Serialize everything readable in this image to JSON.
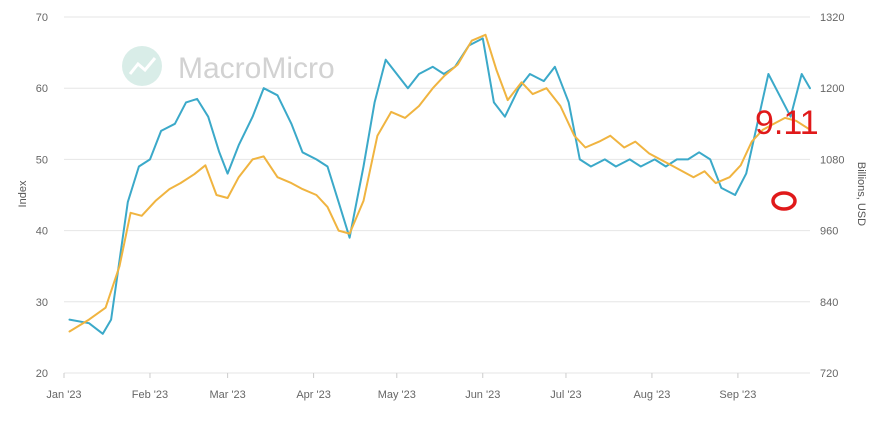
{
  "watermark": {
    "text": "MacroMicro",
    "icon": "chart-logo-icon"
  },
  "colors": {
    "blue": "#3ba9c9",
    "gold": "#f0b440",
    "grid": "#e6e6e6",
    "annotation": "#e0191a"
  },
  "chart_data": {
    "type": "line",
    "x_ticks": [
      "Jan '23",
      "Feb '23",
      "Mar '23",
      "Apr '23",
      "May '23",
      "Jun '23",
      "Jul '23",
      "Aug '23",
      "Sep '23"
    ],
    "xlim": [
      "2023-01-01",
      "2023-09-27"
    ],
    "left_axis": {
      "label": "Index",
      "lim": [
        20,
        70
      ],
      "ticks": [
        "20",
        "30",
        "40",
        "50",
        "60",
        "70"
      ]
    },
    "right_axis": {
      "label": "Billions, USD",
      "lim": [
        720,
        1320
      ],
      "ticks": [
        "720",
        "840",
        "960",
        "1080",
        "1200",
        "1320"
      ]
    },
    "grid": true,
    "series": [
      {
        "axis": "left",
        "color": "#3ba9c9",
        "points": [
          [
            "2023-01-03",
            27.5
          ],
          [
            "2023-01-10",
            27.0
          ],
          [
            "2023-01-15",
            25.5
          ],
          [
            "2023-01-18",
            27.5
          ],
          [
            "2023-01-24",
            44
          ],
          [
            "2023-01-28",
            49
          ],
          [
            "2023-02-01",
            50
          ],
          [
            "2023-02-05",
            54
          ],
          [
            "2023-02-10",
            55
          ],
          [
            "2023-02-14",
            58
          ],
          [
            "2023-02-18",
            58.5
          ],
          [
            "2023-02-22",
            56
          ],
          [
            "2023-02-26",
            51
          ],
          [
            "2023-03-01",
            48
          ],
          [
            "2023-03-05",
            52
          ],
          [
            "2023-03-10",
            56
          ],
          [
            "2023-03-14",
            60
          ],
          [
            "2023-03-19",
            59
          ],
          [
            "2023-03-24",
            55
          ],
          [
            "2023-03-28",
            51
          ],
          [
            "2023-04-02",
            50
          ],
          [
            "2023-04-06",
            49
          ],
          [
            "2023-04-10",
            44
          ],
          [
            "2023-04-14",
            39
          ],
          [
            "2023-04-19",
            49
          ],
          [
            "2023-04-23",
            58
          ],
          [
            "2023-04-27",
            64
          ],
          [
            "2023-05-01",
            62
          ],
          [
            "2023-05-05",
            60
          ],
          [
            "2023-05-09",
            62
          ],
          [
            "2023-05-14",
            63
          ],
          [
            "2023-05-18",
            62
          ],
          [
            "2023-05-22",
            63
          ],
          [
            "2023-05-27",
            66
          ],
          [
            "2023-06-01",
            67
          ],
          [
            "2023-06-05",
            58
          ],
          [
            "2023-06-09",
            56
          ],
          [
            "2023-06-14",
            60
          ],
          [
            "2023-06-18",
            62
          ],
          [
            "2023-06-23",
            61
          ],
          [
            "2023-06-27",
            63
          ],
          [
            "2023-07-02",
            58
          ],
          [
            "2023-07-06",
            50
          ],
          [
            "2023-07-10",
            49
          ],
          [
            "2023-07-15",
            50
          ],
          [
            "2023-07-19",
            49
          ],
          [
            "2023-07-24",
            50
          ],
          [
            "2023-07-28",
            49
          ],
          [
            "2023-08-02",
            50
          ],
          [
            "2023-08-06",
            49
          ],
          [
            "2023-08-10",
            50
          ],
          [
            "2023-08-14",
            50
          ],
          [
            "2023-08-18",
            51
          ],
          [
            "2023-08-22",
            50
          ],
          [
            "2023-08-26",
            46
          ],
          [
            "2023-08-31",
            45
          ],
          [
            "2023-09-04",
            48
          ],
          [
            "2023-09-08",
            55
          ],
          [
            "2023-09-12",
            62
          ],
          [
            "2023-09-16",
            59
          ],
          [
            "2023-09-20",
            56
          ],
          [
            "2023-09-24",
            62
          ],
          [
            "2023-09-27",
            60
          ]
        ]
      },
      {
        "axis": "right",
        "color": "#f0b440",
        "points": [
          [
            "2023-01-03",
            790
          ],
          [
            "2023-01-10",
            810
          ],
          [
            "2023-01-16",
            830
          ],
          [
            "2023-01-21",
            900
          ],
          [
            "2023-01-25",
            990
          ],
          [
            "2023-01-29",
            985
          ],
          [
            "2023-02-03",
            1010
          ],
          [
            "2023-02-08",
            1030
          ],
          [
            "2023-02-12",
            1040
          ],
          [
            "2023-02-17",
            1055
          ],
          [
            "2023-02-21",
            1070
          ],
          [
            "2023-02-25",
            1020
          ],
          [
            "2023-03-01",
            1015
          ],
          [
            "2023-03-05",
            1050
          ],
          [
            "2023-03-10",
            1080
          ],
          [
            "2023-03-14",
            1085
          ],
          [
            "2023-03-19",
            1050
          ],
          [
            "2023-03-24",
            1040
          ],
          [
            "2023-03-28",
            1030
          ],
          [
            "2023-04-02",
            1020
          ],
          [
            "2023-04-06",
            1000
          ],
          [
            "2023-04-10",
            960
          ],
          [
            "2023-04-14",
            955
          ],
          [
            "2023-04-19",
            1010
          ],
          [
            "2023-04-24",
            1120
          ],
          [
            "2023-04-29",
            1160
          ],
          [
            "2023-05-04",
            1150
          ],
          [
            "2023-05-09",
            1170
          ],
          [
            "2023-05-14",
            1200
          ],
          [
            "2023-05-18",
            1220
          ],
          [
            "2023-05-23",
            1240
          ],
          [
            "2023-05-28",
            1280
          ],
          [
            "2023-06-02",
            1290
          ],
          [
            "2023-06-06",
            1230
          ],
          [
            "2023-06-10",
            1180
          ],
          [
            "2023-06-15",
            1210
          ],
          [
            "2023-06-19",
            1190
          ],
          [
            "2023-06-24",
            1200
          ],
          [
            "2023-06-29",
            1170
          ],
          [
            "2023-07-04",
            1120
          ],
          [
            "2023-07-08",
            1100
          ],
          [
            "2023-07-13",
            1110
          ],
          [
            "2023-07-17",
            1120
          ],
          [
            "2023-07-22",
            1100
          ],
          [
            "2023-07-26",
            1110
          ],
          [
            "2023-07-31",
            1090
          ],
          [
            "2023-08-04",
            1080
          ],
          [
            "2023-08-08",
            1070
          ],
          [
            "2023-08-12",
            1060
          ],
          [
            "2023-08-16",
            1050
          ],
          [
            "2023-08-20",
            1060
          ],
          [
            "2023-08-24",
            1040
          ],
          [
            "2023-08-29",
            1050
          ],
          [
            "2023-09-02",
            1070
          ],
          [
            "2023-09-06",
            1110
          ],
          [
            "2023-09-10",
            1130
          ],
          [
            "2023-09-14",
            1140
          ],
          [
            "2023-09-18",
            1150
          ],
          [
            "2023-09-22",
            1145
          ],
          [
            "2023-09-27",
            1130
          ]
        ]
      }
    ],
    "annotations": [
      {
        "text": "9.11"
      }
    ]
  }
}
